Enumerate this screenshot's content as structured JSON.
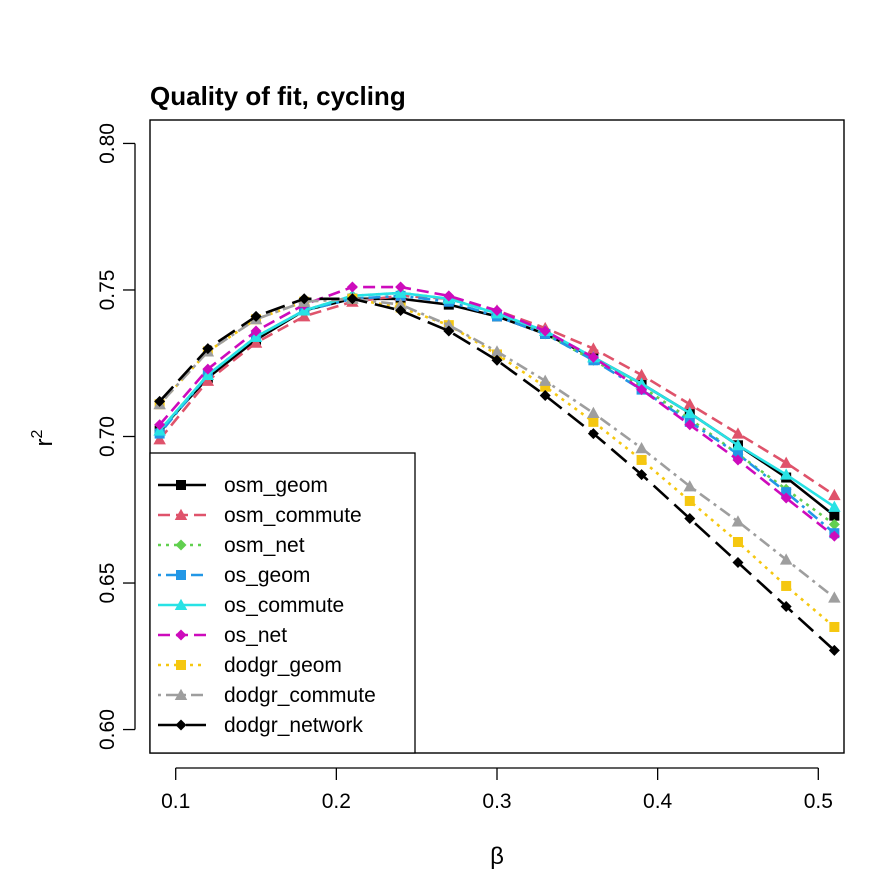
{
  "chart_data": {
    "type": "line",
    "title": "Quality of fit, cycling",
    "xlabel": "β",
    "ylabel": "r",
    "ylabel_superscript": "2",
    "xlim": [
      0.084,
      0.516
    ],
    "ylim": [
      0.592,
      0.808
    ],
    "x_ticks": [
      0.1,
      0.2,
      0.3,
      0.4,
      0.5
    ],
    "x_tick_labels": [
      "0.1",
      "0.2",
      "0.3",
      "0.4",
      "0.5"
    ],
    "y_ticks": [
      0.6,
      0.65,
      0.7,
      0.75,
      0.8
    ],
    "y_tick_labels": [
      "0.60",
      "0.65",
      "0.70",
      "0.75",
      "0.80"
    ],
    "x": [
      0.09,
      0.12,
      0.15,
      0.18,
      0.21,
      0.24,
      0.27,
      0.3,
      0.33,
      0.36,
      0.39,
      0.42,
      0.45,
      0.48,
      0.51
    ],
    "legend_position": "bottom-left",
    "series": [
      {
        "name": "osm_geom",
        "color": "#000000",
        "marker": "square",
        "dash": "solid",
        "values": [
          0.702,
          0.72,
          0.733,
          0.743,
          0.747,
          0.747,
          0.745,
          0.741,
          0.735,
          0.727,
          0.718,
          0.708,
          0.697,
          0.686,
          0.673
        ]
      },
      {
        "name": "osm_commute",
        "color": "#DF536B",
        "marker": "triangle",
        "dash": "dash",
        "values": [
          0.699,
          0.719,
          0.732,
          0.741,
          0.746,
          0.748,
          0.747,
          0.743,
          0.737,
          0.73,
          0.721,
          0.711,
          0.701,
          0.691,
          0.68
        ]
      },
      {
        "name": "osm_net",
        "color": "#61D04F",
        "marker": "diamond",
        "dash": "dot",
        "values": [
          0.702,
          0.721,
          0.734,
          0.743,
          0.748,
          0.749,
          0.747,
          0.742,
          0.735,
          0.726,
          0.717,
          0.706,
          0.694,
          0.682,
          0.67
        ]
      },
      {
        "name": "os_geom",
        "color": "#2297E6",
        "marker": "square",
        "dash": "dotdash",
        "values": [
          0.701,
          0.721,
          0.734,
          0.743,
          0.747,
          0.748,
          0.746,
          0.741,
          0.735,
          0.726,
          0.716,
          0.705,
          0.694,
          0.681,
          0.667
        ]
      },
      {
        "name": "os_commute",
        "color": "#28E2E5",
        "marker": "triangle",
        "dash": "solid",
        "values": [
          0.702,
          0.721,
          0.734,
          0.743,
          0.748,
          0.749,
          0.747,
          0.742,
          0.736,
          0.727,
          0.718,
          0.708,
          0.697,
          0.687,
          0.676
        ]
      },
      {
        "name": "os_net",
        "color": "#CD0BBC",
        "marker": "diamond",
        "dash": "dash",
        "values": [
          0.704,
          0.723,
          0.736,
          0.745,
          0.751,
          0.751,
          0.748,
          0.743,
          0.736,
          0.727,
          0.716,
          0.704,
          0.692,
          0.679,
          0.666
        ]
      },
      {
        "name": "dodgr_geom",
        "color": "#F5C710",
        "marker": "square",
        "dash": "dot",
        "values": [
          0.711,
          0.729,
          0.74,
          0.746,
          0.747,
          0.744,
          0.738,
          0.728,
          0.717,
          0.705,
          0.692,
          0.678,
          0.664,
          0.649,
          0.635
        ]
      },
      {
        "name": "dodgr_commute",
        "color": "#9E9E9E",
        "marker": "triangle",
        "dash": "dotdash",
        "values": [
          0.711,
          0.729,
          0.74,
          0.746,
          0.747,
          0.745,
          0.738,
          0.729,
          0.719,
          0.708,
          0.696,
          0.683,
          0.671,
          0.658,
          0.645
        ]
      },
      {
        "name": "dodgr_network",
        "color": "#000000",
        "marker": "diamond",
        "dash": "longdash",
        "values": [
          0.712,
          0.73,
          0.741,
          0.747,
          0.747,
          0.743,
          0.736,
          0.726,
          0.714,
          0.701,
          0.687,
          0.672,
          0.657,
          0.642,
          0.627
        ]
      }
    ]
  }
}
